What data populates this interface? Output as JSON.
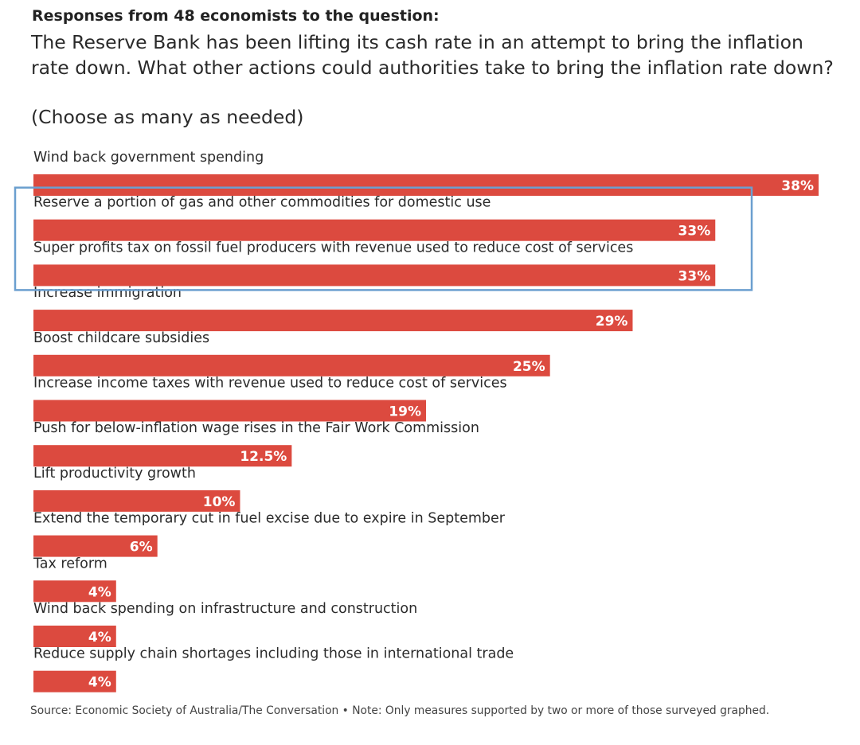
{
  "header": {
    "title": "Responses from 48 economists to the question:",
    "question": "The Reserve Bank has been lifting its cash rate in an attempt to bring the inflation rate down. What other actions could authorities take to bring the inflation rate down?",
    "instruction": "(Choose as many as needed)"
  },
  "footer": {
    "source": "Source: Economic Society of Australia/The Conversation • Note: Only measures supported by two or more of those surveyed graphed."
  },
  "colors": {
    "bar": "#dc4a3f",
    "highlight_box": "#6b9fcf",
    "bar_label": "#ffffff"
  },
  "chart_data": {
    "type": "bar",
    "orientation": "horizontal",
    "title": "",
    "xlabel": "",
    "ylabel": "",
    "unit": "%",
    "xlim": [
      0,
      38
    ],
    "grid": false,
    "legend": "none",
    "categories": [
      "Wind back government spending",
      "Reserve a portion of gas and other commodities for domestic use",
      "Super profits tax on fossil fuel producers with revenue used to reduce cost of services",
      "Increase immigration",
      "Boost childcare subsidies",
      "Increase income taxes with revenue used to reduce cost of services",
      "Push for below-inflation wage rises in the Fair Work Commission",
      "Lift productivity growth",
      "Extend the temporary cut in fuel excise due to expire in September",
      "Tax reform",
      "Wind back spending on infrastructure and construction",
      "Reduce supply chain shortages including those in international trade"
    ],
    "values": [
      38,
      33,
      33,
      29,
      25,
      19,
      12.5,
      10,
      6,
      4,
      4,
      4
    ],
    "value_labels": [
      "38%",
      "33%",
      "33%",
      "29%",
      "25%",
      "19%",
      "12.5%",
      "10%",
      "6%",
      "4%",
      "4%",
      "4%"
    ],
    "highlighted": [
      1,
      2
    ]
  }
}
